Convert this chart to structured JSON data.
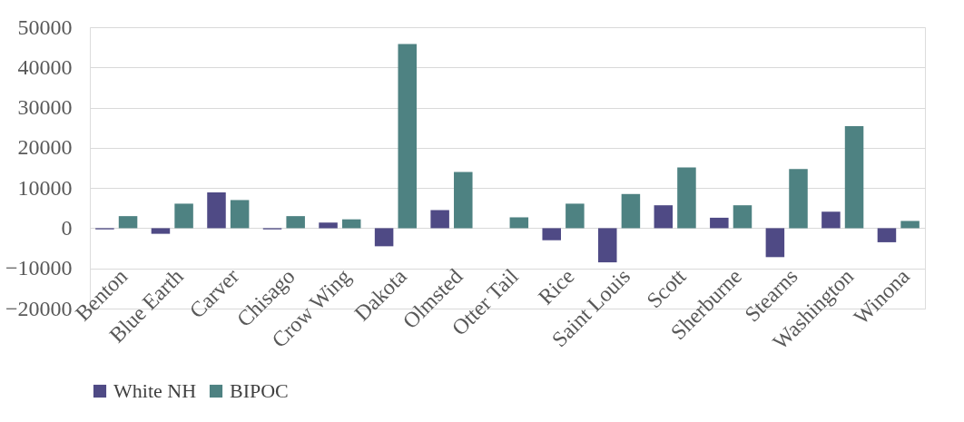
{
  "chart_data": {
    "type": "bar",
    "categories": [
      "Benton",
      "Blue Earth",
      "Carver",
      "Chisago",
      "Crow Wing",
      "Dakota",
      "Olmsted",
      "Otter Tail",
      "Rice",
      "Saint Louis",
      "Scott",
      "Sherburne",
      "Stearns",
      "Washington",
      "Winona"
    ],
    "series": [
      {
        "name": "White NH",
        "color": "#4f4a85",
        "values": [
          -300,
          -1400,
          8900,
          -300,
          1400,
          -4500,
          4500,
          0,
          -3000,
          -8500,
          5700,
          2600,
          -7200,
          4100,
          -3500
        ]
      },
      {
        "name": "BIPOC",
        "color": "#4e8282",
        "values": [
          3000,
          6100,
          7000,
          3000,
          2200,
          45800,
          14000,
          2700,
          6100,
          8500,
          15100,
          5700,
          14700,
          25400,
          1800
        ]
      }
    ],
    "ylim": [
      -20000,
      50000
    ],
    "yticks": [
      -20000,
      -10000,
      0,
      10000,
      20000,
      30000,
      40000,
      50000
    ],
    "grid": "y",
    "legend": "bottom"
  }
}
